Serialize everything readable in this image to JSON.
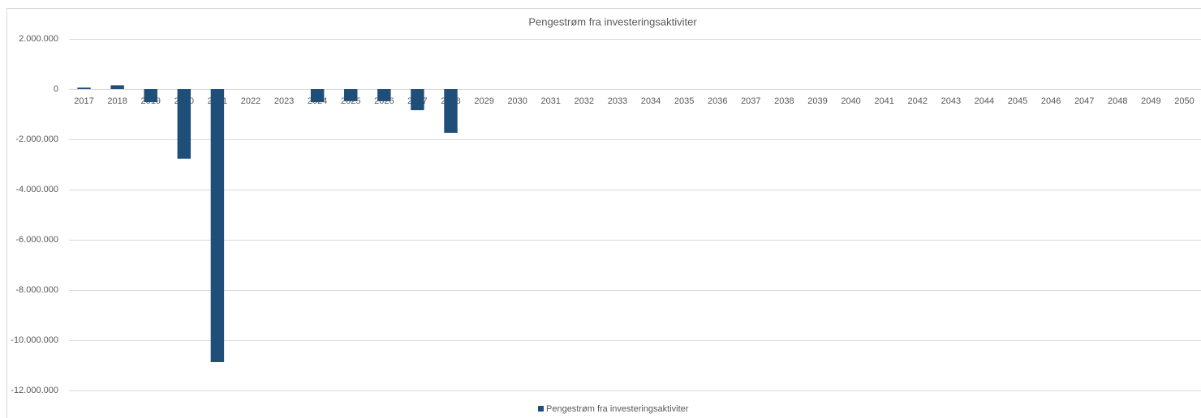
{
  "chart_data": {
    "type": "bar",
    "title": "Pengestrøm fra investeringsaktiviter",
    "categories": [
      "2017",
      "2018",
      "2019",
      "2020",
      "2021",
      "2022",
      "2023",
      "2024",
      "2025",
      "2026",
      "2027",
      "2028",
      "2029",
      "2030",
      "2031",
      "2032",
      "2033",
      "2034",
      "2035",
      "2036",
      "2037",
      "2038",
      "2039",
      "2040",
      "2041",
      "2042",
      "2043",
      "2044",
      "2045",
      "2046",
      "2047",
      "2048",
      "2049",
      "2050"
    ],
    "series": [
      {
        "name": "Pengestrøm fra investeringsaktiviter",
        "color": "#1f4e79",
        "values": [
          60000,
          150000,
          -520000,
          -2770000,
          -10870000,
          0,
          0,
          -520000,
          -480000,
          -480000,
          -840000,
          -1740000,
          0,
          0,
          0,
          0,
          0,
          0,
          0,
          0,
          0,
          0,
          0,
          0,
          0,
          0,
          0,
          0,
          0,
          0,
          0,
          0,
          0,
          0
        ]
      }
    ],
    "ylim": [
      -12000000,
      2000000
    ],
    "yticks": [
      {
        "value": 2000000,
        "label": "2.000.000"
      },
      0,
      {
        "value": -2000000,
        "label": "-2.000.000"
      },
      {
        "value": -4000000,
        "label": "-4.000.000"
      },
      {
        "value": -6000000,
        "label": "-6.000.000"
      },
      {
        "value": -8000000,
        "label": "-8.000.000"
      },
      {
        "value": -10000000,
        "label": "-10.000.000"
      },
      {
        "value": -12000000,
        "label": "-12.000.000"
      }
    ],
    "grid": true,
    "legend": "bottom"
  }
}
